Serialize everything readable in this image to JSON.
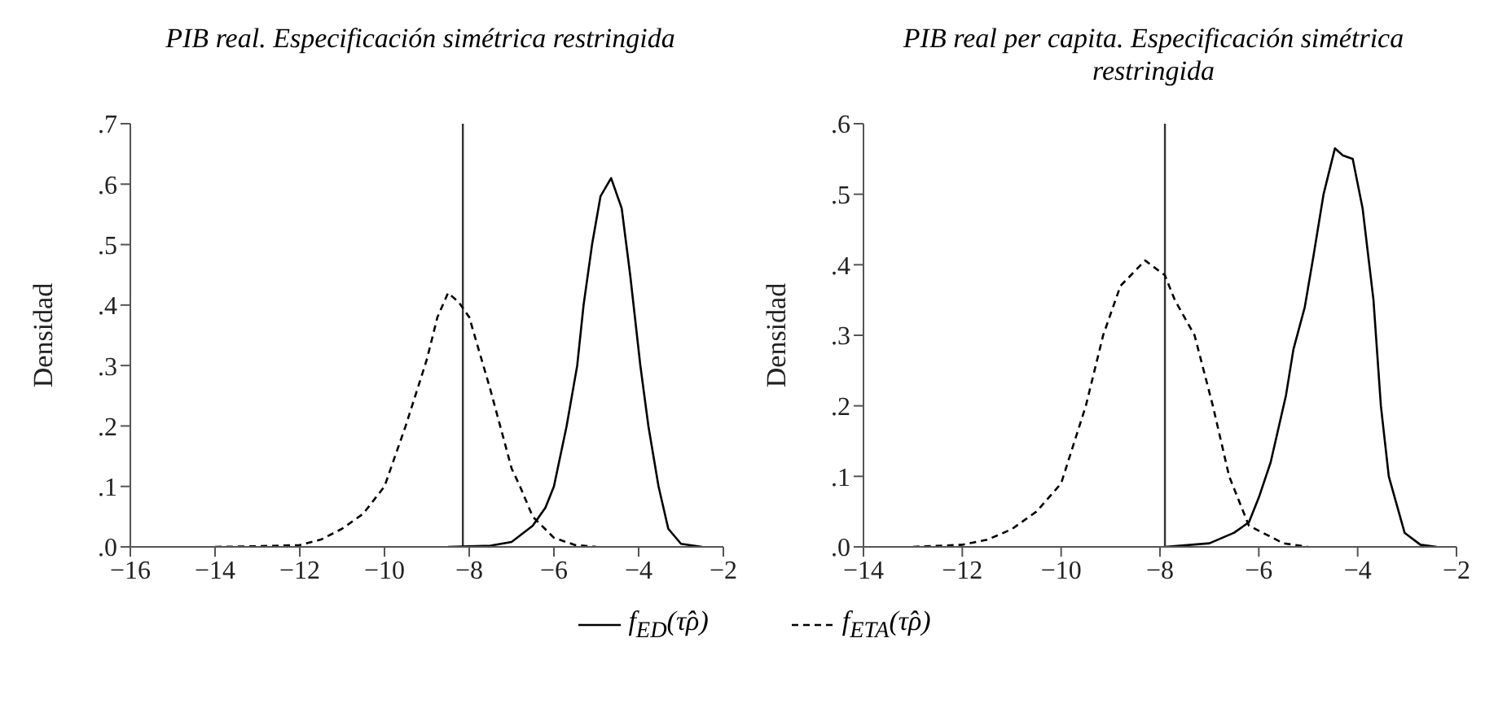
{
  "chart_data": [
    {
      "type": "line",
      "title": "PIB real. Especificación simétrica restringida",
      "ylabel": "Densidad",
      "xlim": [
        -16,
        -2
      ],
      "xticks": [
        {
          "value": -16,
          "label": "−16"
        },
        {
          "value": -14,
          "label": "−14"
        },
        {
          "value": -12,
          "label": "−12"
        },
        {
          "value": -10,
          "label": "−10"
        },
        {
          "value": -8,
          "label": "−8"
        },
        {
          "value": -6,
          "label": "−6"
        },
        {
          "value": -4,
          "label": "−4"
        },
        {
          "value": -2,
          "label": "−2"
        }
      ],
      "ylim": [
        0,
        0.7
      ],
      "yticks": [
        {
          "value": 0,
          "label": ".0"
        },
        {
          "value": 0.1,
          "label": ".1"
        },
        {
          "value": 0.2,
          "label": ".2"
        },
        {
          "value": 0.3,
          "label": ".3"
        },
        {
          "value": 0.4,
          "label": ".4"
        },
        {
          "value": 0.5,
          "label": ".5"
        },
        {
          "value": 0.6,
          "label": ".6"
        },
        {
          "value": 0.7,
          "label": ".7"
        }
      ],
      "grid": false,
      "legend": "bottom",
      "marker": "none",
      "ref_lines": [
        {
          "axis": "x",
          "value": -8.15,
          "color": "#333333"
        }
      ],
      "series": [
        {
          "name": "f$_{ED}$(τ̂ρ)",
          "color": "#000000",
          "line_style": "solid",
          "x": [
            -8.5,
            -7.5,
            -7,
            -6.5,
            -6.2,
            -6,
            -5.7,
            -5.45,
            -5.3,
            -5.1,
            -4.9,
            -4.65,
            -4.4,
            -4.2,
            -3.96,
            -3.77,
            -3.53,
            -3.3,
            -3,
            -2.5
          ],
          "values": [
            0,
            0.002,
            0.008,
            0.035,
            0.065,
            0.1,
            0.2,
            0.3,
            0.4,
            0.5,
            0.58,
            0.61,
            0.56,
            0.45,
            0.3,
            0.2,
            0.1,
            0.03,
            0.005,
            0
          ]
        },
        {
          "name": "f$_{ETA}$(τ̂ρ)",
          "color": "#000000",
          "line_style": "dashed",
          "x": [
            -14,
            -13,
            -12,
            -11.5,
            -11,
            -10.5,
            -10,
            -9.5,
            -9,
            -8.75,
            -8.5,
            -8.25,
            -8,
            -7.5,
            -7,
            -6.8,
            -6.5,
            -6,
            -5.5,
            -5
          ],
          "values": [
            0,
            0.001,
            0.003,
            0.012,
            0.03,
            0.055,
            0.1,
            0.2,
            0.31,
            0.38,
            0.42,
            0.405,
            0.38,
            0.26,
            0.13,
            0.1,
            0.05,
            0.015,
            0.003,
            0
          ]
        }
      ]
    },
    {
      "type": "line",
      "title": "PIB real per capita. Especificación simétrica restringida",
      "ylabel": "Densidad",
      "xlim": [
        -14,
        -2
      ],
      "xticks": [
        {
          "value": -14,
          "label": "−14"
        },
        {
          "value": -12,
          "label": "−12"
        },
        {
          "value": -10,
          "label": "−10"
        },
        {
          "value": -8,
          "label": "−8"
        },
        {
          "value": -6,
          "label": "−6"
        },
        {
          "value": -4,
          "label": "−4"
        },
        {
          "value": -2,
          "label": "−2"
        }
      ],
      "ylim": [
        0,
        0.6
      ],
      "yticks": [
        {
          "value": 0,
          "label": ".0"
        },
        {
          "value": 0.1,
          "label": ".1"
        },
        {
          "value": 0.2,
          "label": ".2"
        },
        {
          "value": 0.3,
          "label": ".3"
        },
        {
          "value": 0.4,
          "label": ".4"
        },
        {
          "value": 0.5,
          "label": ".5"
        },
        {
          "value": 0.6,
          "label": ".6"
        }
      ],
      "grid": false,
      "marker": "none",
      "ref_lines": [
        {
          "axis": "x",
          "value": -7.9,
          "color": "#333333"
        }
      ],
      "series": [
        {
          "color": "#000000",
          "line_style": "solid",
          "x": [
            -7.9,
            -7,
            -6.5,
            -6.2,
            -6,
            -5.76,
            -5.45,
            -5.3,
            -5.07,
            -4.9,
            -4.69,
            -4.46,
            -4.3,
            -4.1,
            -3.9,
            -3.68,
            -3.53,
            -3.37,
            -3.05,
            -2.73,
            -2.4
          ],
          "values": [
            0,
            0.005,
            0.02,
            0.035,
            0.07,
            0.12,
            0.215,
            0.28,
            0.34,
            0.41,
            0.5,
            0.565,
            0.555,
            0.55,
            0.48,
            0.35,
            0.2,
            0.1,
            0.02,
            0.003,
            0
          ]
        },
        {
          "color": "#000000",
          "line_style": "dashed",
          "x": [
            -13,
            -12,
            -11.5,
            -11,
            -10.5,
            -10,
            -9.5,
            -9.15,
            -8.8,
            -8.3,
            -7.9,
            -7.7,
            -7.3,
            -6.93,
            -6.6,
            -6.2,
            -5.5,
            -5
          ],
          "values": [
            0,
            0.003,
            0.01,
            0.025,
            0.05,
            0.09,
            0.2,
            0.3,
            0.37,
            0.406,
            0.385,
            0.35,
            0.3,
            0.2,
            0.1,
            0.03,
            0.005,
            0
          ]
        }
      ]
    }
  ]
}
